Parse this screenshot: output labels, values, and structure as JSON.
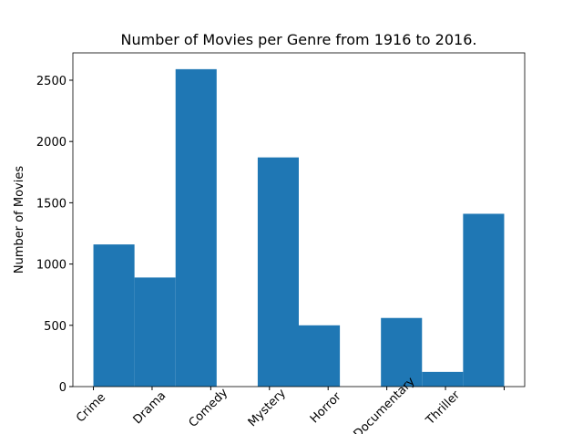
{
  "chart_data": {
    "type": "histogram",
    "title": "Number of Movies per Genre from 1916 to 2016.",
    "ylabel": "Number of Movies",
    "bins": [
      0,
      0.7,
      1.4,
      2.1,
      2.8,
      3.5,
      4.2,
      4.9,
      5.6,
      6.3,
      7
    ],
    "values": [
      1160,
      890,
      2590,
      0,
      1870,
      500,
      0,
      560,
      120,
      1410
    ],
    "color": "#1f77b4",
    "xlim": [
      -0.35,
      7.35
    ],
    "xticks": [
      {
        "value": 0,
        "label": "Crime"
      },
      {
        "value": 1,
        "label": "Drama"
      },
      {
        "value": 2,
        "label": "Comedy"
      },
      {
        "value": 3,
        "label": "Mystery"
      },
      {
        "value": 4,
        "label": "Horror"
      },
      {
        "value": 5,
        "label": "Documentary"
      },
      {
        "value": 6,
        "label": "Thriller"
      },
      {
        "value": 7,
        "label": null
      }
    ],
    "ylim": [
      0,
      2723
    ],
    "yticks": [
      0,
      500,
      1000,
      1500,
      2000,
      2500
    ]
  }
}
